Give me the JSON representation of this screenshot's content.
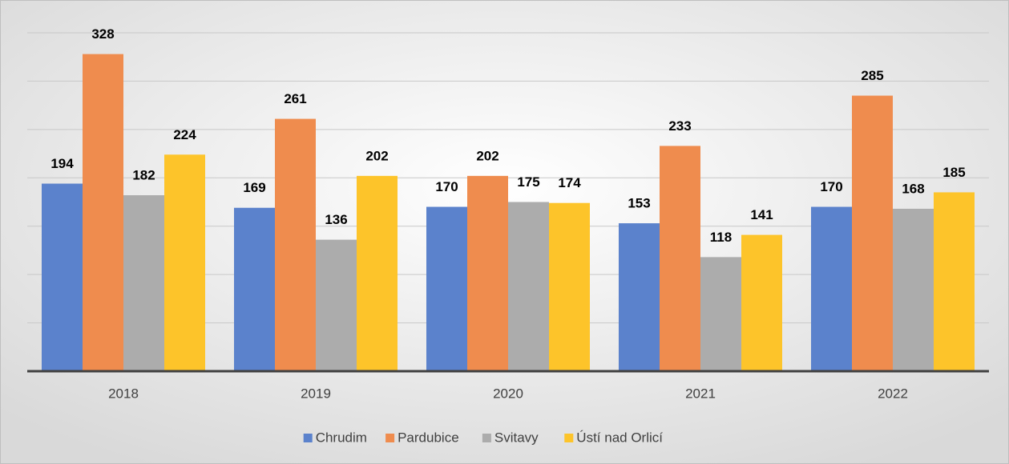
{
  "chart_data": {
    "type": "bar",
    "categories": [
      "2018",
      "2019",
      "2020",
      "2021",
      "2022"
    ],
    "series": [
      {
        "name": "Chrudim",
        "color": "#5b82cc",
        "values": [
          194,
          169,
          170,
          153,
          170
        ]
      },
      {
        "name": "Pardubice",
        "color": "#ef8c4e",
        "values": [
          328,
          261,
          202,
          233,
          285
        ]
      },
      {
        "name": "Svitavy",
        "color": "#acacac",
        "values": [
          182,
          136,
          175,
          118,
          168
        ]
      },
      {
        "name": "Ústí nad Orlicí",
        "color": "#fdc42a",
        "values": [
          224,
          202,
          174,
          141,
          185
        ]
      }
    ],
    "ylim": [
      0,
      350
    ],
    "yticks": [
      0,
      50,
      100,
      150,
      200,
      250,
      300,
      350
    ],
    "grid": true,
    "legend": "bottom"
  }
}
